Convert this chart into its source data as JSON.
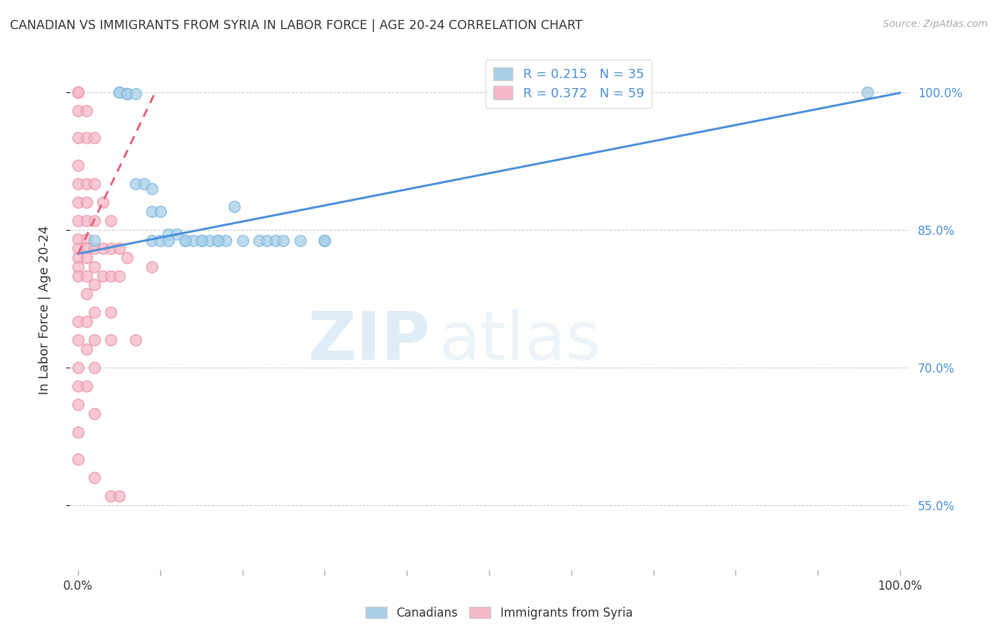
{
  "title": "CANADIAN VS IMMIGRANTS FROM SYRIA IN LABOR FORCE | AGE 20-24 CORRELATION CHART",
  "source": "Source: ZipAtlas.com",
  "ylabel": "In Labor Force | Age 20-24",
  "xlim": [
    -0.01,
    1.01
  ],
  "ylim": [
    0.48,
    1.045
  ],
  "yticks": [
    0.55,
    0.7,
    0.85,
    1.0
  ],
  "ytick_labels": [
    "55.0%",
    "70.0%",
    "85.0%",
    "100.0%"
  ],
  "blue_color": "#a8cfe8",
  "pink_color": "#f5b8c8",
  "blue_edge_color": "#7fb8e0",
  "pink_edge_color": "#e896a8",
  "blue_line_color": "#4a90d9",
  "pink_line_color": "#e8607a",
  "tick_label_color": "#4a90d9",
  "canadians_x": [
    0.02,
    0.05,
    0.05,
    0.06,
    0.06,
    0.07,
    0.07,
    0.08,
    0.09,
    0.09,
    0.1,
    0.11,
    0.12,
    0.13,
    0.14,
    0.15,
    0.16,
    0.17,
    0.18,
    0.19,
    0.2,
    0.22,
    0.23,
    0.24,
    0.25,
    0.27,
    0.3,
    0.09,
    0.1,
    0.11,
    0.13,
    0.15,
    0.17,
    0.3,
    0.96
  ],
  "canadians_y": [
    0.838,
    1.0,
    1.0,
    0.998,
    0.998,
    0.998,
    0.9,
    0.9,
    0.895,
    0.87,
    0.87,
    0.845,
    0.845,
    0.838,
    0.838,
    0.838,
    0.838,
    0.838,
    0.838,
    0.875,
    0.838,
    0.838,
    0.838,
    0.838,
    0.838,
    0.838,
    0.838,
    0.838,
    0.838,
    0.838,
    0.838,
    0.838,
    0.838,
    0.838,
    1.0
  ],
  "syria_x": [
    0.0,
    0.0,
    0.0,
    0.0,
    0.0,
    0.0,
    0.0,
    0.0,
    0.0,
    0.0,
    0.0,
    0.0,
    0.0,
    0.0,
    0.0,
    0.0,
    0.0,
    0.0,
    0.0,
    0.0,
    0.01,
    0.01,
    0.01,
    0.01,
    0.01,
    0.01,
    0.01,
    0.01,
    0.01,
    0.01,
    0.01,
    0.01,
    0.01,
    0.02,
    0.02,
    0.02,
    0.02,
    0.02,
    0.02,
    0.02,
    0.02,
    0.02,
    0.02,
    0.02,
    0.03,
    0.03,
    0.03,
    0.04,
    0.04,
    0.04,
    0.04,
    0.04,
    0.04,
    0.05,
    0.05,
    0.05,
    0.06,
    0.07,
    0.09
  ],
  "syria_y": [
    1.0,
    1.0,
    0.98,
    0.95,
    0.92,
    0.9,
    0.88,
    0.86,
    0.84,
    0.83,
    0.82,
    0.81,
    0.8,
    0.75,
    0.73,
    0.7,
    0.68,
    0.66,
    0.63,
    0.6,
    0.98,
    0.95,
    0.9,
    0.88,
    0.86,
    0.84,
    0.83,
    0.82,
    0.8,
    0.78,
    0.75,
    0.72,
    0.68,
    0.95,
    0.9,
    0.86,
    0.83,
    0.81,
    0.79,
    0.76,
    0.73,
    0.7,
    0.65,
    0.58,
    0.88,
    0.83,
    0.8,
    0.86,
    0.83,
    0.8,
    0.76,
    0.73,
    0.56,
    0.83,
    0.8,
    0.56,
    0.82,
    0.73,
    0.81
  ],
  "blue_trend_x": [
    0.0,
    1.0
  ],
  "blue_trend_y": [
    0.824,
    0.999
  ],
  "pink_trend_x": [
    0.0,
    0.093
  ],
  "pink_trend_y": [
    0.824,
    0.998
  ],
  "watermark_text": "ZIP",
  "watermark_text2": "atlas",
  "background_color": "#ffffff"
}
